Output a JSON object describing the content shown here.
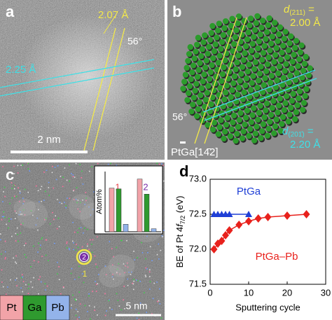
{
  "panels": {
    "a": {
      "label": "a",
      "d1": "2.07 Å",
      "angle": "56°",
      "d2": "2.25 Å",
      "scale": "2 nm"
    },
    "b": {
      "label": "b",
      "d1": [
        "d",
        "(211)",
        " =",
        "2.00 Å"
      ],
      "angle": "56°",
      "d2": [
        "d",
        "(201̄)",
        " =",
        "2.20 Å"
      ],
      "zone": "PtGa[14̄2]"
    },
    "c": {
      "label": "c",
      "scale": "5 nm"
    },
    "d": {
      "label": "d"
    }
  },
  "chart_data": [
    {
      "type": "line",
      "xlabel": "Sputtering cycle",
      "ylabel": [
        "BE of Pt 4",
        "f",
        "7/2",
        " (eV)"
      ],
      "xlim": [
        0,
        30
      ],
      "xticks": [
        0,
        10,
        20,
        30
      ],
      "ylim": [
        71.5,
        73.0
      ],
      "yticks": [
        71.5,
        {
          "value": 72.0,
          "label": "72.0"
        },
        72.5,
        {
          "value": 73.0,
          "label": "73.0"
        }
      ],
      "series": [
        {
          "name": "PtGa",
          "color": "#1f3fd6",
          "marker": "triangle",
          "x": [
            1,
            2,
            3,
            4,
            5,
            10
          ],
          "values": [
            72.5,
            72.5,
            72.5,
            72.5,
            72.5,
            72.5
          ]
        },
        {
          "name": "PtGa–Pb",
          "color": "#e8211c",
          "marker": "diamond",
          "x": [
            1,
            2,
            3,
            4,
            5,
            7.5,
            10,
            12.5,
            15,
            20,
            25
          ],
          "values": [
            72.0,
            72.08,
            72.12,
            72.2,
            72.27,
            72.35,
            72.4,
            72.44,
            72.46,
            72.48,
            72.5
          ]
        }
      ]
    },
    {
      "type": "bar",
      "ylabel": "Atom%",
      "ylim": [
        0,
        80
      ],
      "categories": [
        "1",
        "2"
      ],
      "category_colors": [
        "#e8474f",
        "#7a2fa8"
      ],
      "series": [
        {
          "name": "Pt",
          "color": "#f2a3a8",
          "values": [
            58,
            70
          ]
        },
        {
          "name": "Ga",
          "color": "#2f9a2f",
          "values": [
            57,
            50
          ]
        },
        {
          "name": "Pb",
          "color": "#93b3ea",
          "values": [
            10,
            4
          ]
        }
      ]
    }
  ]
}
